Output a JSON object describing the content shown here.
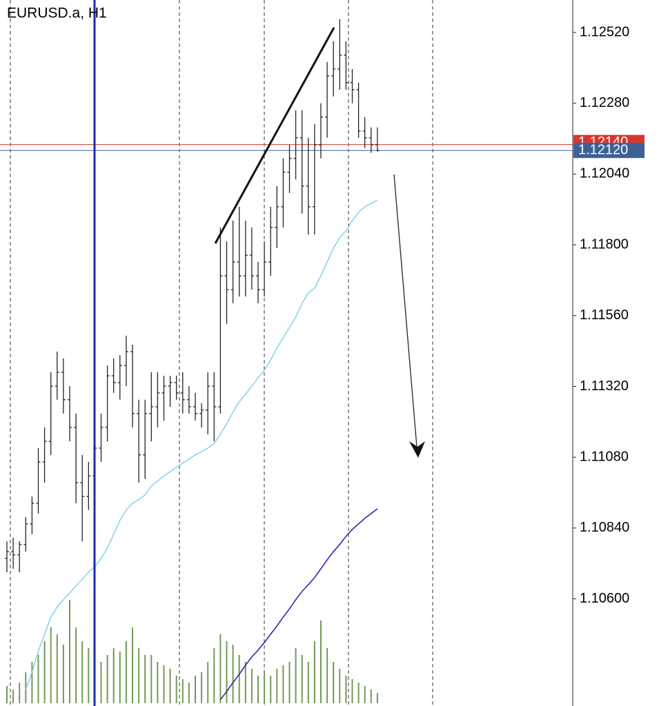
{
  "chart_data": {
    "type": "ohlc",
    "title": "EURUSD.a, H1",
    "color": "#222222",
    "open": [
      1.10737,
      1.1076,
      1.10749,
      1.10784,
      1.10854,
      1.10924,
      1.11064,
      1.11134,
      1.11321,
      1.11368,
      1.11275,
      1.11181,
      1.10994,
      1.10947,
      1.11017,
      1.11111,
      1.11181,
      1.11356,
      1.11333,
      1.11391,
      1.11438,
      1.11228,
      1.11088,
      1.11228,
      1.11251,
      1.11298,
      1.11321,
      1.11333,
      1.11298,
      1.11275,
      1.11251,
      1.11228,
      1.1124,
      1.11321,
      1.11251,
      1.11695,
      1.11648,
      1.11742,
      1.11695,
      1.11765,
      1.11695,
      1.11648,
      1.11742,
      1.11859,
      1.11929,
      1.12046,
      1.12093,
      1.12163,
      1.11999,
      1.11929,
      1.12139,
      1.12233,
      1.12373,
      1.12396,
      1.12443,
      1.1235,
      1.12326,
      1.12186,
      1.12163,
      1.12139
    ],
    "high": [
      1.10795,
      1.10807,
      1.10795,
      1.10877,
      1.10947,
      1.11111,
      1.11181,
      1.11368,
      1.11438,
      1.11415,
      1.11321,
      1.11228,
      1.11088,
      1.11064,
      1.11134,
      1.11228,
      1.11391,
      1.11415,
      1.11426,
      1.11492,
      1.11462,
      1.11275,
      1.11275,
      1.11368,
      1.11368,
      1.11356,
      1.11356,
      1.11356,
      1.11368,
      1.11321,
      1.11298,
      1.11263,
      1.11368,
      1.11368,
      1.11859,
      1.11812,
      1.11882,
      1.11929,
      1.11882,
      1.11859,
      1.11742,
      1.11812,
      1.11929,
      1.11999,
      1.12093,
      1.12139,
      1.12256,
      1.12256,
      1.12163,
      1.12209,
      1.1228,
      1.1242,
      1.1249,
      1.12565,
      1.1249,
      1.12396,
      1.1235,
      1.12233,
      1.12198,
      1.12198
    ],
    "low": [
      1.1069,
      1.10702,
      1.1069,
      1.1076,
      1.10819,
      1.10889,
      1.10994,
      1.11088,
      1.11275,
      1.11228,
      1.11134,
      1.10924,
      1.10795,
      1.10901,
      1.10971,
      1.11064,
      1.11134,
      1.11298,
      1.11275,
      1.11321,
      1.11181,
      1.10994,
      1.11006,
      1.11134,
      1.11181,
      1.11204,
      1.11251,
      1.11275,
      1.11228,
      1.11228,
      1.11204,
      1.11181,
      1.11158,
      1.11134,
      1.11228,
      1.11532,
      1.11602,
      1.11625,
      1.11625,
      1.11648,
      1.11602,
      1.11625,
      1.11695,
      1.11789,
      1.11859,
      1.11976,
      1.12022,
      1.11906,
      1.11835,
      1.11835,
      1.12093,
      1.12163,
      1.12303,
      1.12326,
      1.12326,
      1.1228,
      1.12163,
      1.12128,
      1.12112,
      1.12116
    ],
    "close": [
      1.1076,
      1.10749,
      1.10784,
      1.10854,
      1.10924,
      1.11064,
      1.11134,
      1.11321,
      1.11368,
      1.11275,
      1.11181,
      1.10994,
      1.10947,
      1.11017,
      1.11111,
      1.11181,
      1.11356,
      1.11333,
      1.11391,
      1.11438,
      1.11228,
      1.11088,
      1.11228,
      1.11251,
      1.11298,
      1.11321,
      1.11333,
      1.11298,
      1.11275,
      1.11251,
      1.11228,
      1.1124,
      1.11321,
      1.11251,
      1.11695,
      1.11648,
      1.11742,
      1.11695,
      1.11765,
      1.11695,
      1.11648,
      1.11742,
      1.11859,
      1.11929,
      1.12046,
      1.12093,
      1.12163,
      1.11999,
      1.11929,
      1.12139,
      1.12233,
      1.12373,
      1.12396,
      1.12443,
      1.1235,
      1.12326,
      1.12186,
      1.12163,
      1.12139,
      1.1212
    ],
    "moving_averages": [
      {
        "color": "#7fd3ea",
        "values": [
          null,
          null,
          null,
          1.10293,
          1.10351,
          1.10422,
          1.1048,
          1.10538,
          1.10573,
          1.10597,
          1.1062,
          1.10644,
          1.10667,
          1.1069,
          1.10709,
          1.10737,
          1.10772,
          1.10819,
          1.10866,
          1.10901,
          1.10924,
          1.10936,
          1.10952,
          1.10982,
          1.10999,
          1.11017,
          1.11031,
          1.11046,
          1.1106,
          1.11074,
          1.11088,
          1.11099,
          1.11111,
          1.11127,
          1.11158,
          1.11193,
          1.11233,
          1.11268,
          1.11293,
          1.11321,
          1.11349,
          1.11375,
          1.1141,
          1.1145,
          1.11485,
          1.1152,
          1.11555,
          1.11602,
          1.11637,
          1.11653,
          1.11695,
          1.11742,
          1.11789,
          1.11824,
          1.11847,
          1.11882,
          1.1191,
          1.11929,
          1.11941,
          1.11952
        ]
      },
      {
        "color": "#1c1ca6",
        "values": [
          null,
          null,
          null,
          null,
          null,
          null,
          null,
          null,
          null,
          null,
          null,
          null,
          null,
          null,
          null,
          null,
          null,
          null,
          null,
          null,
          null,
          null,
          null,
          null,
          null,
          null,
          null,
          null,
          null,
          null,
          null,
          null,
          null,
          null,
          1.10258,
          1.10286,
          1.10316,
          1.10344,
          1.10375,
          1.10403,
          1.10426,
          1.10452,
          1.1048,
          1.10508,
          1.10538,
          1.10566,
          1.10597,
          1.10625,
          1.10648,
          1.10672,
          1.10702,
          1.10732,
          1.1076,
          1.10784,
          1.10812,
          1.10835,
          1.10854,
          1.10873,
          1.10889,
          1.10905
        ]
      }
    ],
    "volume": {
      "color": "#6f9a55",
      "ylim": [
        0,
        1020
      ],
      "values": [
        25,
        20,
        30,
        45,
        60,
        70,
        90,
        110,
        100,
        85,
        150,
        110,
        90,
        80,
        70,
        60,
        70,
        80,
        75,
        90,
        110,
        80,
        70,
        70,
        60,
        55,
        50,
        40,
        35,
        30,
        40,
        45,
        60,
        80,
        100,
        90,
        85,
        70,
        60,
        50,
        40,
        45,
        40,
        50,
        55,
        60,
        80,
        70,
        60,
        90,
        120,
        80,
        60,
        50,
        40,
        35,
        30,
        25,
        20,
        15
      ]
    },
    "ask": {
      "value": 1.1214,
      "label": "1.12140",
      "color": "#d9362b"
    },
    "bid": {
      "value": 1.1212,
      "label": "1.12120",
      "color": "#3d6196"
    },
    "ylim": [
      1.10246,
      1.1263
    ],
    "yticks": [
      {
        "value": 1.1252,
        "label": "1.12520"
      },
      {
        "value": 1.1228,
        "label": "1.12280"
      },
      {
        "value": 1.1204,
        "label": "1.12040"
      },
      {
        "value": 1.118,
        "label": "1.11800"
      },
      {
        "value": 1.1156,
        "label": "1.11560"
      },
      {
        "value": 1.1132,
        "label": "1.11320"
      },
      {
        "value": 1.1108,
        "label": "1.11080"
      },
      {
        "value": 1.1084,
        "label": "1.10840"
      },
      {
        "value": 1.106,
        "label": "1.10600"
      }
    ]
  }
}
